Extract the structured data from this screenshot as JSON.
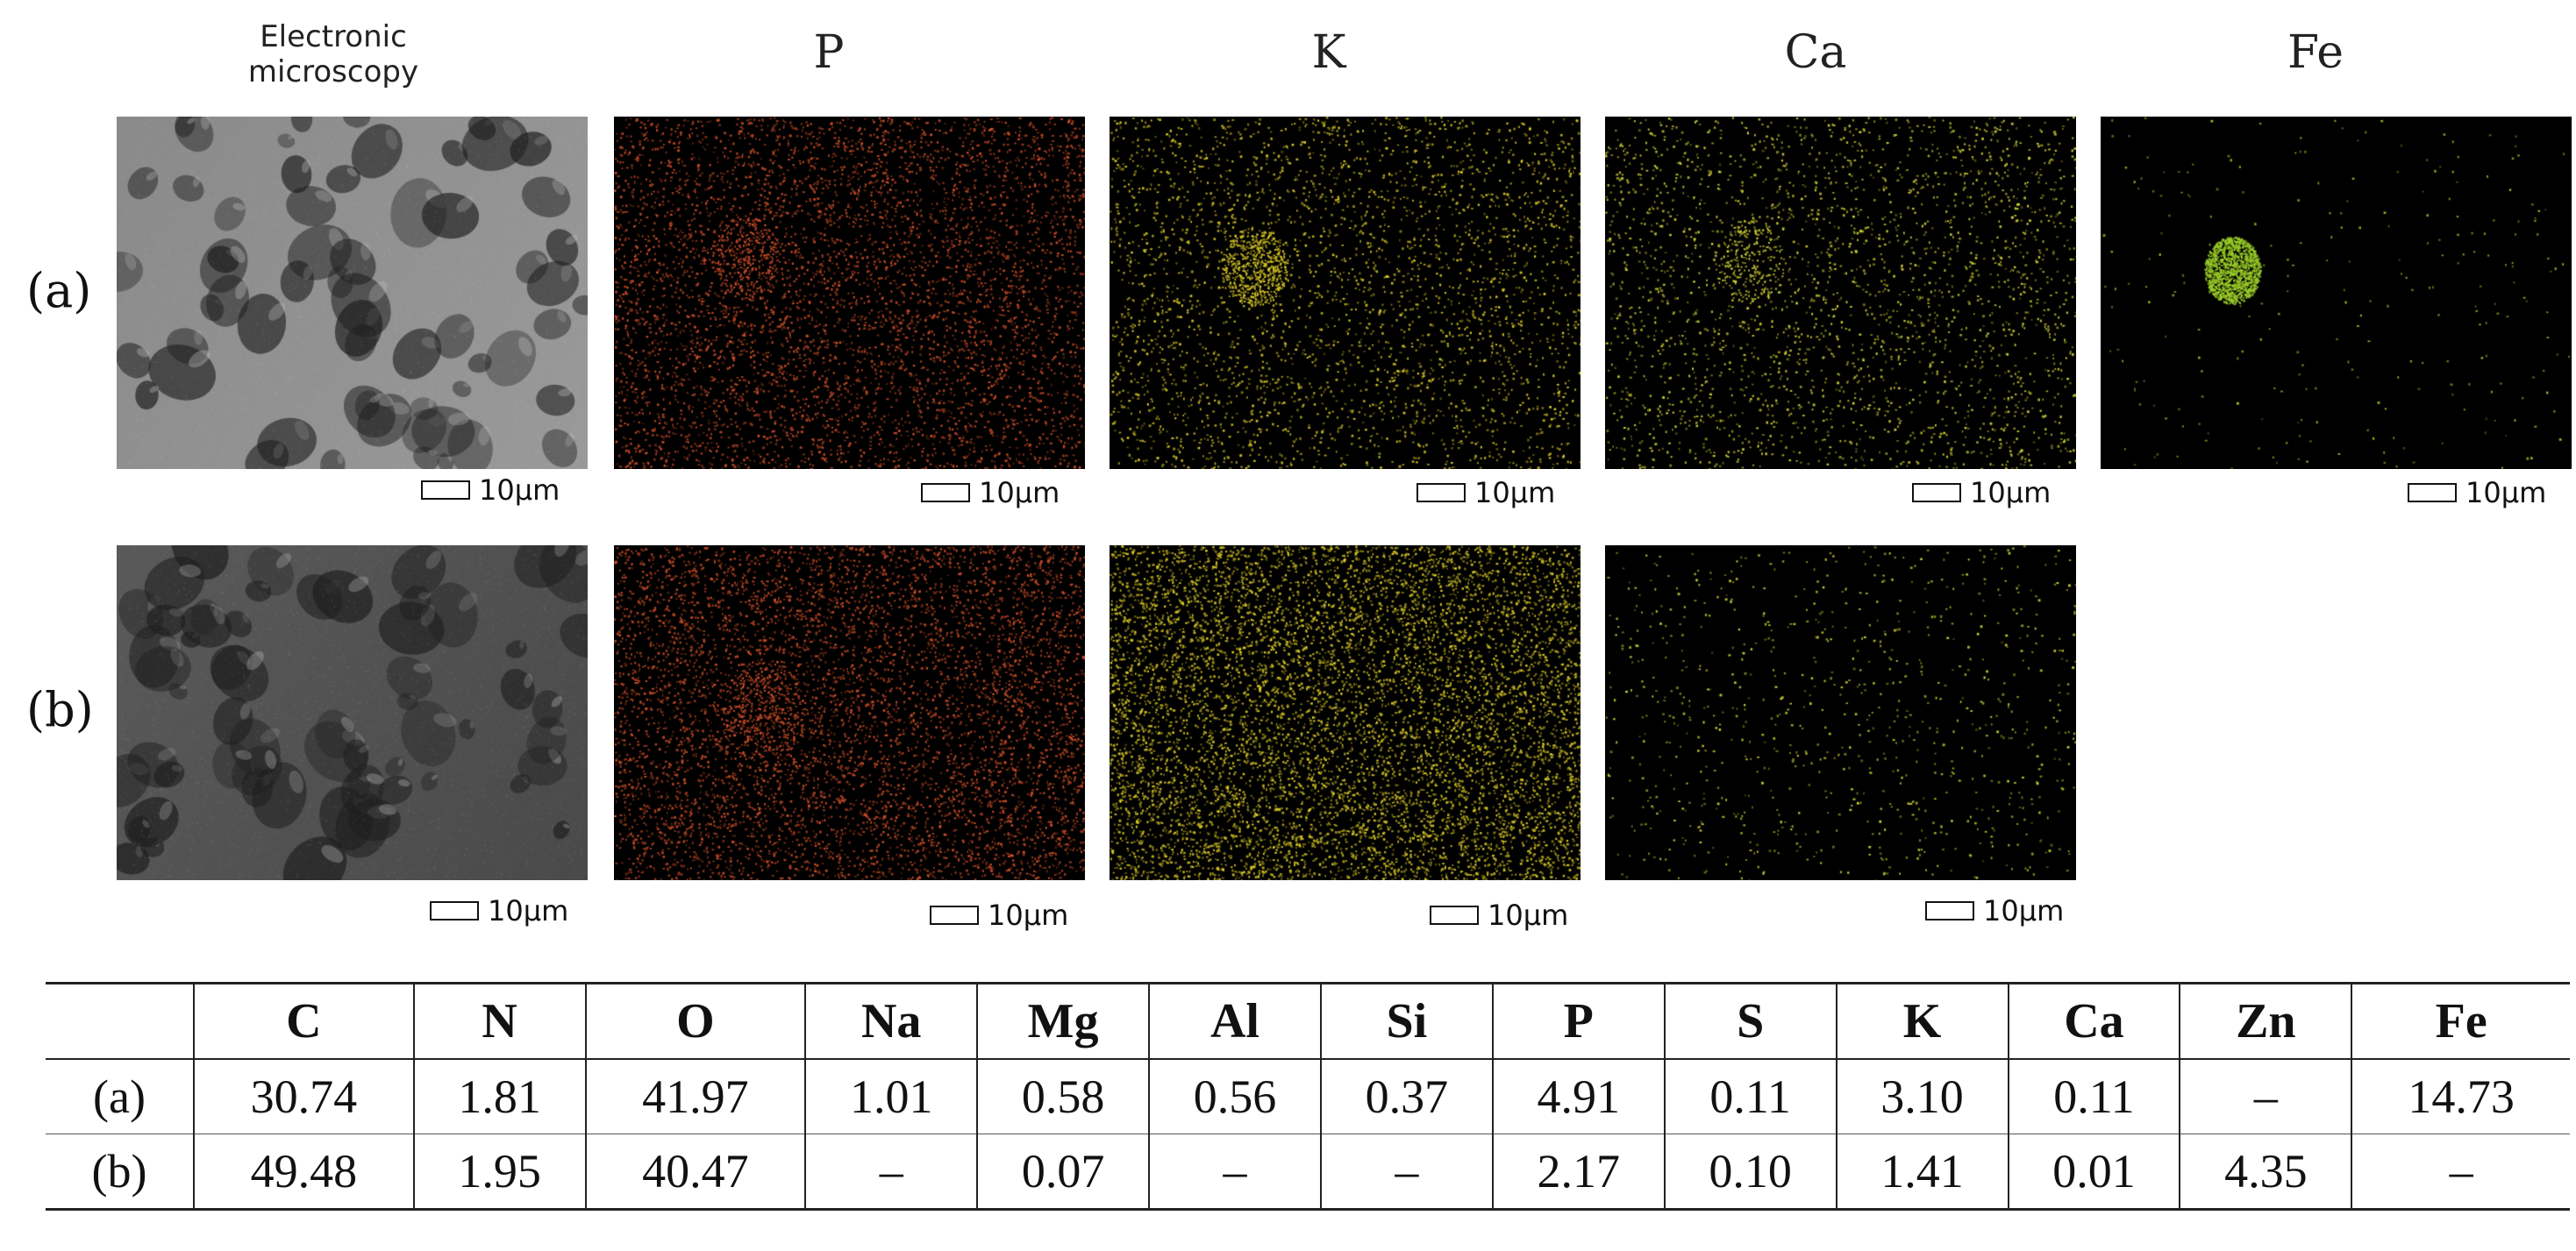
{
  "columns": [
    {
      "label": "Electronic microscopy"
    },
    {
      "label": "P"
    },
    {
      "label": "K"
    },
    {
      "label": "Ca"
    },
    {
      "label": "Fe"
    }
  ],
  "rows": [
    {
      "label": "(a)"
    },
    {
      "label": "(b)"
    }
  ],
  "scale_label": "10μm",
  "map_colors": {
    "P": "#d2502a",
    "K": "#e0d028",
    "Ca": "#d8d838",
    "Fe": "#9ccf2a"
  },
  "table": {
    "headers": [
      "",
      "C",
      "N",
      "O",
      "Na",
      "Mg",
      "Al",
      "Si",
      "P",
      "S",
      "K",
      "Ca",
      "Zn",
      "Fe"
    ],
    "rows": [
      [
        "(a)",
        "30.74",
        "1.81",
        "41.97",
        "1.01",
        "0.58",
        "0.56",
        "0.37",
        "4.91",
        "0.11",
        "3.10",
        "0.11",
        "–",
        "14.73"
      ],
      [
        "(b)",
        "49.48",
        "1.95",
        "40.47",
        "–",
        "0.07",
        "–",
        "–",
        "2.17",
        "0.10",
        "1.41",
        "0.01",
        "4.35",
        "–"
      ]
    ]
  }
}
